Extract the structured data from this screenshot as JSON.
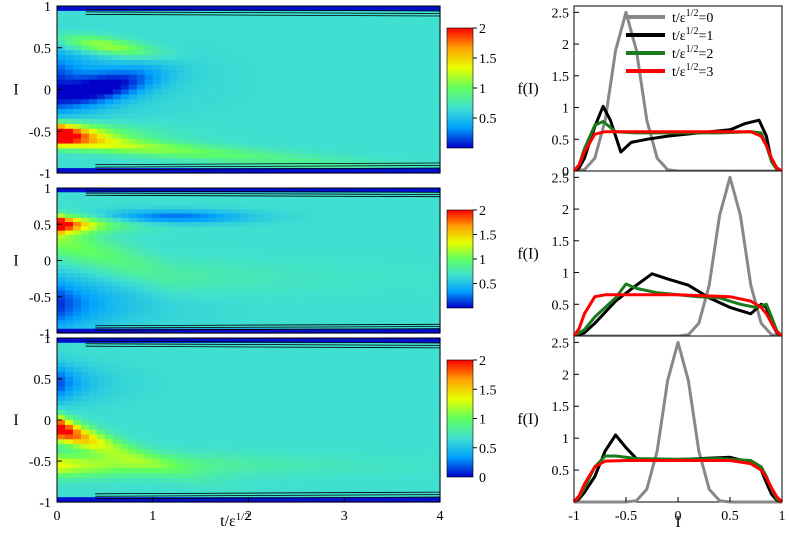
{
  "figure": {
    "contour_panels": {
      "xlabel_base": "t/ε",
      "xlabel_sup": "1/2",
      "ylabel": "I",
      "x_ticks": [
        "0",
        "1",
        "2",
        "3",
        "4"
      ],
      "y_ticks": [
        "-1",
        "-0.5",
        "0",
        "0.5",
        "1"
      ],
      "colorbar_ticks": [
        "0.5",
        "1",
        "1.5",
        "2"
      ],
      "colorbar_zero_label": "0"
    },
    "profile_panels": {
      "xlabel": "I",
      "ylabel": "f(I)",
      "x_ticks": [
        "-1",
        "-0.5",
        "0",
        "0.5",
        "1"
      ],
      "y_ticks": [
        "0",
        "0.5",
        "1",
        "1.5",
        "2",
        "2.5"
      ]
    },
    "legend": [
      {
        "base": "t/ε",
        "sup": "1/2",
        "suffix": "=0",
        "color": "#888888"
      },
      {
        "base": "t/ε",
        "sup": "1/2",
        "suffix": "=1",
        "color": "#000000"
      },
      {
        "base": "t/ε",
        "sup": "1/2",
        "suffix": "=2",
        "color": "#1b7a1b"
      },
      {
        "base": "t/ε",
        "sup": "1/2",
        "suffix": "=3",
        "color": "#ff0000"
      }
    ],
    "colormap": [
      "#0000c8",
      "#00a0ff",
      "#40e0d0",
      "#60ff60",
      "#e8ff00",
      "#ffa000",
      "#ff0000"
    ]
  },
  "chart_data": [
    {
      "type": "heatmap",
      "panel": "top-contour",
      "xlabel": "",
      "ylabel": "I",
      "xlim": [
        0,
        4
      ],
      "ylim": [
        -1,
        1
      ],
      "clim": [
        0,
        2
      ],
      "initial_peak_I": -0.5,
      "background_value": 0.65,
      "hot_spot": {
        "t": 0,
        "I": -0.5,
        "value": 2.0
      },
      "secondary_lobe": {
        "t": 0.5,
        "I": 0.6,
        "value": 1.2
      }
    },
    {
      "type": "heatmap",
      "panel": "middle-contour",
      "xlabel": "",
      "ylabel": "I",
      "xlim": [
        0,
        4
      ],
      "ylim": [
        -1,
        1
      ],
      "clim": [
        0,
        2
      ],
      "initial_peak_I": 0.5,
      "background_value": 0.65,
      "hot_spot": {
        "t": 0,
        "I": 0.5,
        "value": 2.0
      },
      "secondary_lobe": {
        "t": 1.0,
        "I": 0.6,
        "value": 0.3
      }
    },
    {
      "type": "heatmap",
      "panel": "bottom-contour",
      "xlabel": "t/ε^1/2",
      "ylabel": "I",
      "xlim": [
        0,
        4
      ],
      "ylim": [
        -1,
        1
      ],
      "clim": [
        0,
        2
      ],
      "initial_peak_I": 0.0,
      "background_value": 0.65,
      "hot_spot": {
        "t": 0.1,
        "I": -0.1,
        "value": 2.0
      }
    },
    {
      "type": "line",
      "panel": "top-profile",
      "xlabel": "",
      "ylabel": "f(I)",
      "xlim": [
        -1,
        1
      ],
      "ylim": [
        0,
        2.6
      ],
      "series": [
        {
          "name": "t/ε^1/2=0",
          "x": [
            -1,
            -0.9,
            -0.8,
            -0.7,
            -0.6,
            -0.5,
            -0.4,
            -0.3,
            -0.2,
            -0.1,
            0,
            0.5,
            1
          ],
          "y": [
            0,
            0.02,
            0.2,
            0.8,
            1.9,
            2.5,
            1.9,
            0.8,
            0.2,
            0.02,
            0,
            0,
            0
          ]
        },
        {
          "name": "t/ε^1/2=1",
          "x": [
            -1,
            -0.95,
            -0.9,
            -0.8,
            -0.72,
            -0.65,
            -0.55,
            -0.45,
            -0.3,
            -0.1,
            0.2,
            0.5,
            0.65,
            0.78,
            0.85,
            0.9,
            0.95,
            1
          ],
          "y": [
            0,
            0.05,
            0.2,
            0.7,
            1.02,
            0.8,
            0.3,
            0.45,
            0.5,
            0.55,
            0.6,
            0.65,
            0.75,
            0.8,
            0.55,
            0.15,
            0.03,
            0
          ]
        },
        {
          "name": "t/ε^1/2=2",
          "x": [
            -1,
            -0.95,
            -0.9,
            -0.8,
            -0.72,
            -0.6,
            -0.4,
            0,
            0.4,
            0.7,
            0.8,
            0.85,
            0.9,
            0.95,
            1
          ],
          "y": [
            0,
            0.1,
            0.35,
            0.72,
            0.78,
            0.62,
            0.6,
            0.6,
            0.6,
            0.62,
            0.6,
            0.4,
            0.15,
            0.03,
            0
          ]
        },
        {
          "name": "t/ε^1/2=3",
          "x": [
            -1,
            -0.95,
            -0.9,
            -0.8,
            -0.7,
            -0.5,
            0,
            0.5,
            0.7,
            0.8,
            0.85,
            0.9,
            0.95,
            1
          ],
          "y": [
            0,
            0.1,
            0.3,
            0.58,
            0.62,
            0.62,
            0.62,
            0.62,
            0.62,
            0.55,
            0.4,
            0.2,
            0.05,
            0
          ]
        }
      ]
    },
    {
      "type": "line",
      "panel": "middle-profile",
      "xlabel": "",
      "ylabel": "f(I)",
      "xlim": [
        -1,
        1
      ],
      "ylim": [
        0,
        2.6
      ],
      "series": [
        {
          "name": "t/ε^1/2=0",
          "x": [
            -1,
            -0.5,
            0,
            0.1,
            0.2,
            0.3,
            0.4,
            0.5,
            0.6,
            0.7,
            0.8,
            0.9,
            1
          ],
          "y": [
            0,
            0,
            0,
            0.02,
            0.2,
            0.8,
            1.9,
            2.5,
            1.9,
            0.8,
            0.2,
            0.02,
            0
          ]
        },
        {
          "name": "t/ε^1/2=1",
          "x": [
            -1,
            -0.9,
            -0.8,
            -0.6,
            -0.4,
            -0.25,
            -0.1,
            0.1,
            0.3,
            0.5,
            0.7,
            0.8,
            0.85,
            0.9,
            0.95,
            1
          ],
          "y": [
            0,
            0.05,
            0.2,
            0.55,
            0.8,
            0.98,
            0.9,
            0.8,
            0.6,
            0.45,
            0.35,
            0.5,
            0.45,
            0.2,
            0.05,
            0
          ]
        },
        {
          "name": "t/ε^1/2=2",
          "x": [
            -1,
            -0.9,
            -0.8,
            -0.6,
            -0.5,
            -0.4,
            -0.2,
            0,
            0.2,
            0.4,
            0.6,
            0.75,
            0.85,
            0.9,
            0.95,
            1
          ],
          "y": [
            0,
            0.1,
            0.3,
            0.6,
            0.82,
            0.75,
            0.68,
            0.65,
            0.62,
            0.6,
            0.5,
            0.45,
            0.5,
            0.3,
            0.08,
            0
          ]
        },
        {
          "name": "t/ε^1/2=3",
          "x": [
            -1,
            -0.95,
            -0.9,
            -0.8,
            -0.7,
            -0.5,
            0,
            0.5,
            0.7,
            0.8,
            0.85,
            0.9,
            0.95,
            1
          ],
          "y": [
            0,
            0.12,
            0.35,
            0.62,
            0.65,
            0.65,
            0.65,
            0.62,
            0.55,
            0.45,
            0.35,
            0.2,
            0.06,
            0
          ]
        }
      ]
    },
    {
      "type": "line",
      "panel": "bottom-profile",
      "xlabel": "I",
      "ylabel": "f(I)",
      "xlim": [
        -1,
        1
      ],
      "ylim": [
        0,
        2.6
      ],
      "series": [
        {
          "name": "t/ε^1/2=0",
          "x": [
            -1,
            -0.5,
            -0.4,
            -0.3,
            -0.2,
            -0.1,
            0,
            0.1,
            0.2,
            0.3,
            0.4,
            0.5,
            1
          ],
          "y": [
            0,
            0,
            0.02,
            0.2,
            0.8,
            1.9,
            2.5,
            1.9,
            0.8,
            0.2,
            0.02,
            0,
            0
          ]
        },
        {
          "name": "t/ε^1/2=1",
          "x": [
            -1,
            -0.95,
            -0.9,
            -0.8,
            -0.7,
            -0.6,
            -0.5,
            -0.4,
            -0.2,
            0.2,
            0.5,
            0.7,
            0.8,
            0.85,
            0.9,
            0.95,
            1
          ],
          "y": [
            0,
            0.05,
            0.15,
            0.4,
            0.8,
            1.05,
            0.85,
            0.68,
            0.65,
            0.68,
            0.7,
            0.62,
            0.5,
            0.3,
            0.12,
            0.03,
            0
          ]
        },
        {
          "name": "t/ε^1/2=2",
          "x": [
            -1,
            -0.95,
            -0.9,
            -0.8,
            -0.7,
            -0.6,
            -0.4,
            0,
            0.4,
            0.7,
            0.8,
            0.85,
            0.9,
            0.95,
            1
          ],
          "y": [
            0,
            0.08,
            0.22,
            0.55,
            0.72,
            0.72,
            0.68,
            0.67,
            0.68,
            0.65,
            0.55,
            0.4,
            0.2,
            0.05,
            0
          ]
        },
        {
          "name": "t/ε^1/2=3",
          "x": [
            -1,
            -0.95,
            -0.9,
            -0.8,
            -0.7,
            -0.5,
            0,
            0.5,
            0.7,
            0.8,
            0.85,
            0.9,
            0.95,
            1
          ],
          "y": [
            0,
            0.1,
            0.28,
            0.55,
            0.64,
            0.65,
            0.65,
            0.65,
            0.6,
            0.5,
            0.38,
            0.22,
            0.08,
            0
          ]
        }
      ]
    }
  ]
}
